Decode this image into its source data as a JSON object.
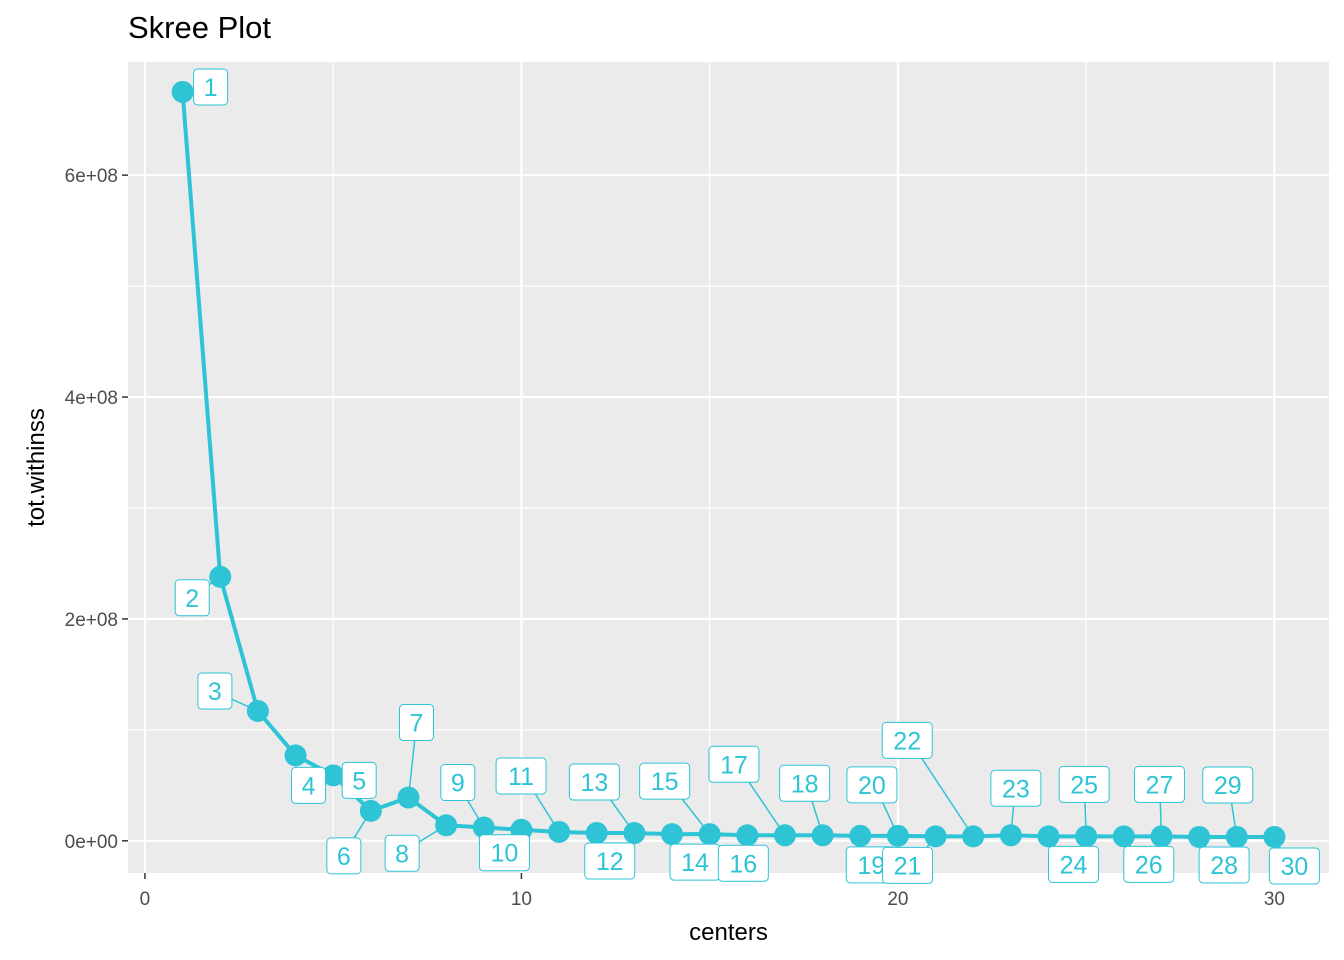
{
  "chart_data": {
    "type": "line",
    "title": "Skree Plot",
    "xlabel": "centers",
    "ylabel": "tot.withinss",
    "xlim": [
      -0.45,
      31.45
    ],
    "ylim": [
      -29000000,
      702000000
    ],
    "x_ticks": [
      0,
      10,
      20,
      30
    ],
    "x_tick_labels": [
      "0",
      "10",
      "20",
      "30"
    ],
    "y_ticks": [
      0,
      200000000,
      400000000,
      600000000
    ],
    "y_tick_labels": [
      "0e+00",
      "2e+08",
      "4e+08",
      "6e+08"
    ],
    "grid": true,
    "color": "#2ec4d6",
    "panel_background": "#ebebeb",
    "series": [
      {
        "x": [
          1,
          2,
          3,
          4,
          5,
          6,
          7,
          8,
          9,
          10,
          11,
          12,
          13,
          14,
          15,
          16,
          17,
          18,
          19,
          20,
          21,
          22,
          23,
          24,
          25,
          26,
          27,
          28,
          29,
          30
        ],
        "values": [
          675000000,
          238000000,
          117000000,
          77000000,
          59000000,
          27000000,
          39000000,
          14000000,
          12000000,
          10000000,
          8000000,
          7000000,
          7000000,
          6000000,
          6000000,
          5000000,
          5000000,
          5000000,
          4500000,
          4500000,
          4000000,
          4000000,
          5000000,
          4000000,
          4000000,
          4000000,
          4000000,
          3500000,
          3500000,
          3500000
        ],
        "labels": [
          "1",
          "2",
          "3",
          "4",
          "5",
          "6",
          "7",
          "8",
          "9",
          "10",
          "11",
          "12",
          "13",
          "14",
          "15",
          "16",
          "17",
          "18",
          "19",
          "20",
          "21",
          "22",
          "23",
          "24",
          "25",
          "26",
          "27",
          "28",
          "29",
          "30"
        ]
      }
    ]
  }
}
